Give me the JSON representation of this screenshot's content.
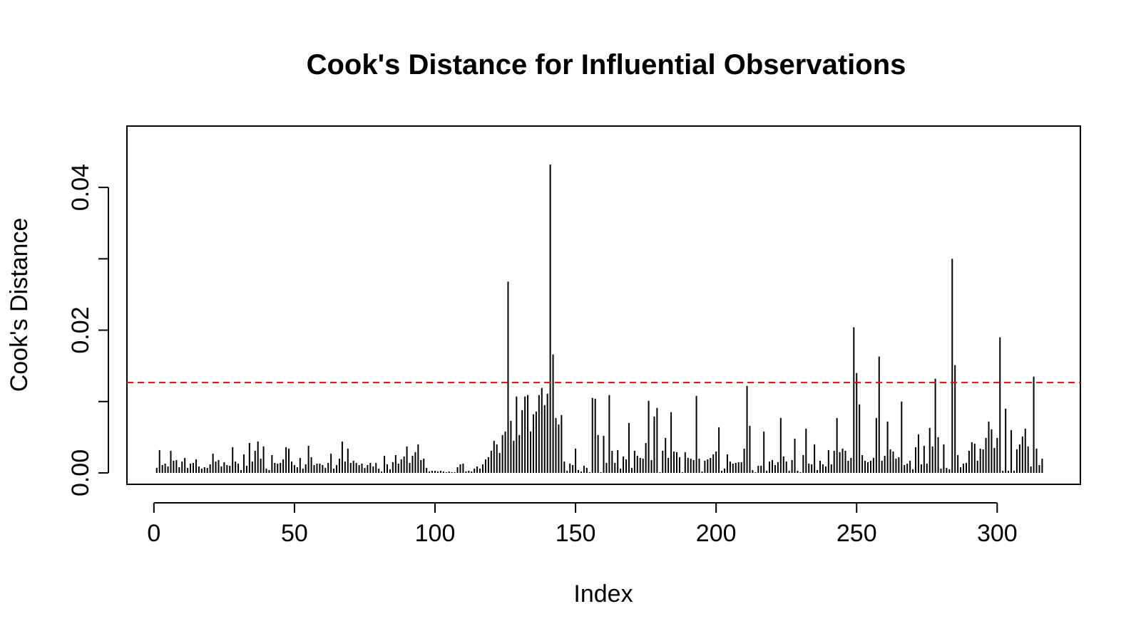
{
  "chart_data": {
    "type": "bar",
    "title": "Cook's Distance for Influential Observations",
    "xlabel": "Index",
    "ylabel": "Cook's Distance",
    "xlim": [
      -9.6,
      329.6
    ],
    "ylim": [
      -0.0016,
      0.0486
    ],
    "x_ticks": [
      0,
      50,
      100,
      150,
      200,
      250,
      300
    ],
    "x_tick_labels": [
      "0",
      "50",
      "100",
      "150",
      "200",
      "250",
      "300"
    ],
    "y_ticks": [
      0.0,
      0.01,
      0.02,
      0.03,
      0.04
    ],
    "y_tick_labels": [
      "0.00",
      "",
      "0.02",
      "",
      "0.04"
    ],
    "threshold": 0.01266,
    "threshold_color": "#ff0000",
    "bar_color": "#000000",
    "grid": false,
    "legend": "none",
    "x": [
      1,
      2,
      3,
      4,
      5,
      6,
      7,
      8,
      9,
      10,
      11,
      12,
      13,
      14,
      15,
      16,
      17,
      18,
      19,
      20,
      21,
      22,
      23,
      24,
      25,
      26,
      27,
      28,
      29,
      30,
      31,
      32,
      33,
      34,
      35,
      36,
      37,
      38,
      39,
      40,
      41,
      42,
      43,
      44,
      45,
      46,
      47,
      48,
      49,
      50,
      51,
      52,
      53,
      54,
      55,
      56,
      57,
      58,
      59,
      60,
      61,
      62,
      63,
      64,
      65,
      66,
      67,
      68,
      69,
      70,
      71,
      72,
      73,
      74,
      75,
      76,
      77,
      78,
      79,
      80,
      81,
      82,
      83,
      84,
      85,
      86,
      87,
      88,
      89,
      90,
      91,
      92,
      93,
      94,
      95,
      96,
      97,
      98,
      99,
      100,
      101,
      102,
      103,
      104,
      105,
      106,
      107,
      108,
      109,
      110,
      111,
      112,
      113,
      114,
      115,
      116,
      117,
      118,
      119,
      120,
      121,
      122,
      123,
      124,
      125,
      126,
      127,
      128,
      129,
      130,
      131,
      132,
      133,
      134,
      135,
      136,
      137,
      138,
      139,
      140,
      141,
      142,
      143,
      144,
      145,
      146,
      147,
      148,
      149,
      150,
      151,
      152,
      153,
      154,
      155,
      156,
      157,
      158,
      159,
      160,
      161,
      162,
      163,
      164,
      165,
      166,
      167,
      168,
      169,
      170,
      171,
      172,
      173,
      174,
      175,
      176,
      177,
      178,
      179,
      180,
      181,
      182,
      183,
      184,
      185,
      186,
      187,
      188,
      189,
      190,
      191,
      192,
      193,
      194,
      195,
      196,
      197,
      198,
      199,
      200,
      201,
      202,
      203,
      204,
      205,
      206,
      207,
      208,
      209,
      210,
      211,
      212,
      213,
      214,
      215,
      216,
      217,
      218,
      219,
      220,
      221,
      222,
      223,
      224,
      225,
      226,
      227,
      228,
      229,
      230,
      231,
      232,
      233,
      234,
      235,
      236,
      237,
      238,
      239,
      240,
      241,
      242,
      243,
      244,
      245,
      246,
      247,
      248,
      249,
      250,
      251,
      252,
      253,
      254,
      255,
      256,
      257,
      258,
      259,
      260,
      261,
      262,
      263,
      264,
      265,
      266,
      267,
      268,
      269,
      270,
      271,
      272,
      273,
      274,
      275,
      276,
      277,
      278,
      279,
      280,
      281,
      282,
      283,
      284,
      285,
      286,
      287,
      288,
      289,
      290,
      291,
      292,
      293,
      294,
      295,
      296,
      297,
      298,
      299,
      300,
      301,
      302,
      303,
      304,
      305,
      306,
      307,
      308,
      309,
      310,
      311,
      312,
      313,
      314,
      315,
      316
    ],
    "values": [
      0.0007,
      0.0032,
      0.0011,
      0.0013,
      0.0009,
      0.0031,
      0.0017,
      0.0018,
      0.0008,
      0.0016,
      0.0021,
      0.0007,
      0.0013,
      0.0014,
      0.0019,
      0.0009,
      0.0006,
      0.0008,
      0.0007,
      0.0012,
      0.0027,
      0.0016,
      0.0018,
      0.0009,
      0.0015,
      0.0011,
      0.001,
      0.0036,
      0.0016,
      0.0013,
      0.0004,
      0.0026,
      0.001,
      0.0042,
      0.0016,
      0.0031,
      0.0044,
      0.002,
      0.0037,
      0.0006,
      0.0004,
      0.0025,
      0.0014,
      0.0013,
      0.0014,
      0.0019,
      0.0036,
      0.0034,
      0.0016,
      0.0011,
      0.0008,
      0.0021,
      0.0006,
      0.0012,
      0.0038,
      0.0022,
      0.0011,
      0.0013,
      0.0013,
      0.0011,
      0.0007,
      0.0014,
      0.0027,
      0.0006,
      0.0011,
      0.002,
      0.0044,
      0.0016,
      0.0034,
      0.0014,
      0.0017,
      0.0014,
      0.0011,
      0.0013,
      0.0007,
      0.0011,
      0.0014,
      0.0009,
      0.0014,
      0.0006,
      0.0002,
      0.0024,
      0.0012,
      0.0005,
      0.0015,
      0.0025,
      0.0013,
      0.0019,
      0.0023,
      0.0037,
      0.0014,
      0.0024,
      0.0029,
      0.004,
      0.0018,
      0.002,
      0.0007,
      0.0002,
      0.0003,
      0.0003,
      0.0002,
      0.0003,
      0.0002,
      0.0001,
      0.0002,
      0.0001,
      0.0001,
      0.0008,
      0.0012,
      0.0013,
      0.0002,
      0.0003,
      0.0002,
      0.0006,
      0.0009,
      0.0006,
      0.0012,
      0.0019,
      0.0022,
      0.0031,
      0.0045,
      0.004,
      0.0028,
      0.0053,
      0.0058,
      0.0268,
      0.0073,
      0.0045,
      0.0107,
      0.0053,
      0.0088,
      0.0107,
      0.0109,
      0.0058,
      0.0082,
      0.0086,
      0.0109,
      0.0119,
      0.0095,
      0.0111,
      0.0432,
      0.0166,
      0.0077,
      0.0068,
      0.0081,
      0.0016,
      0.0003,
      0.0013,
      0.0011,
      0.0034,
      0.0004,
      0.0002,
      0.001,
      0.0007,
      0.0001,
      0.0105,
      0.0104,
      0.0053,
      0.0001,
      0.0052,
      0.0014,
      0.0109,
      0.0031,
      0.0014,
      0.0032,
      0.0006,
      0.0023,
      0.0019,
      0.007,
      0.0007,
      0.0031,
      0.0024,
      0.0021,
      0.002,
      0.0042,
      0.0101,
      0.0018,
      0.0079,
      0.0091,
      0.0001,
      0.0031,
      0.0049,
      0.0021,
      0.0085,
      0.003,
      0.0029,
      0.0022,
      0.0001,
      0.0029,
      0.0021,
      0.002,
      0.0018,
      0.0108,
      0.002,
      0.0002,
      0.0017,
      0.0019,
      0.0021,
      0.0026,
      0.003,
      0.0064,
      0.0003,
      0.0006,
      0.0026,
      0.0016,
      0.0013,
      0.0014,
      0.0015,
      0.0015,
      0.0034,
      0.0122,
      0.0066,
      0.0004,
      0.0001,
      0.001,
      0.001,
      0.0058,
      0.0003,
      0.0016,
      0.0018,
      0.0011,
      0.0015,
      0.0077,
      0.0023,
      0.0016,
      0.0003,
      0.0018,
      0.0048,
      0.0003,
      0.0001,
      0.0025,
      0.0062,
      0.0013,
      0.0012,
      0.004,
      0.0004,
      0.0017,
      0.0012,
      0.0009,
      0.0032,
      0.0012,
      0.0031,
      0.0077,
      0.0029,
      0.0034,
      0.0031,
      0.0017,
      0.0021,
      0.0204,
      0.014,
      0.0096,
      0.0025,
      0.0017,
      0.0015,
      0.0017,
      0.0021,
      0.0077,
      0.0163,
      0.0017,
      0.0024,
      0.0072,
      0.0033,
      0.003,
      0.002,
      0.0022,
      0.01,
      0.0011,
      0.0013,
      0.0017,
      0.0005,
      0.0036,
      0.0054,
      0.0012,
      0.0038,
      0.0013,
      0.0063,
      0.0037,
      0.0132,
      0.005,
      0.0006,
      0.004,
      0.0007,
      0.0005,
      0.03,
      0.0151,
      0.0025,
      0.0008,
      0.0013,
      0.0014,
      0.0031,
      0.0043,
      0.0041,
      0.0017,
      0.0034,
      0.0033,
      0.0049,
      0.0072,
      0.0061,
      0.0035,
      0.0049,
      0.019,
      0.0003,
      0.009,
      0.0003,
      0.006,
      0.0003,
      0.0033,
      0.004,
      0.0051,
      0.0062,
      0.0037,
      0.0009,
      0.0135,
      0.0034,
      0.0011,
      0.002
    ]
  }
}
